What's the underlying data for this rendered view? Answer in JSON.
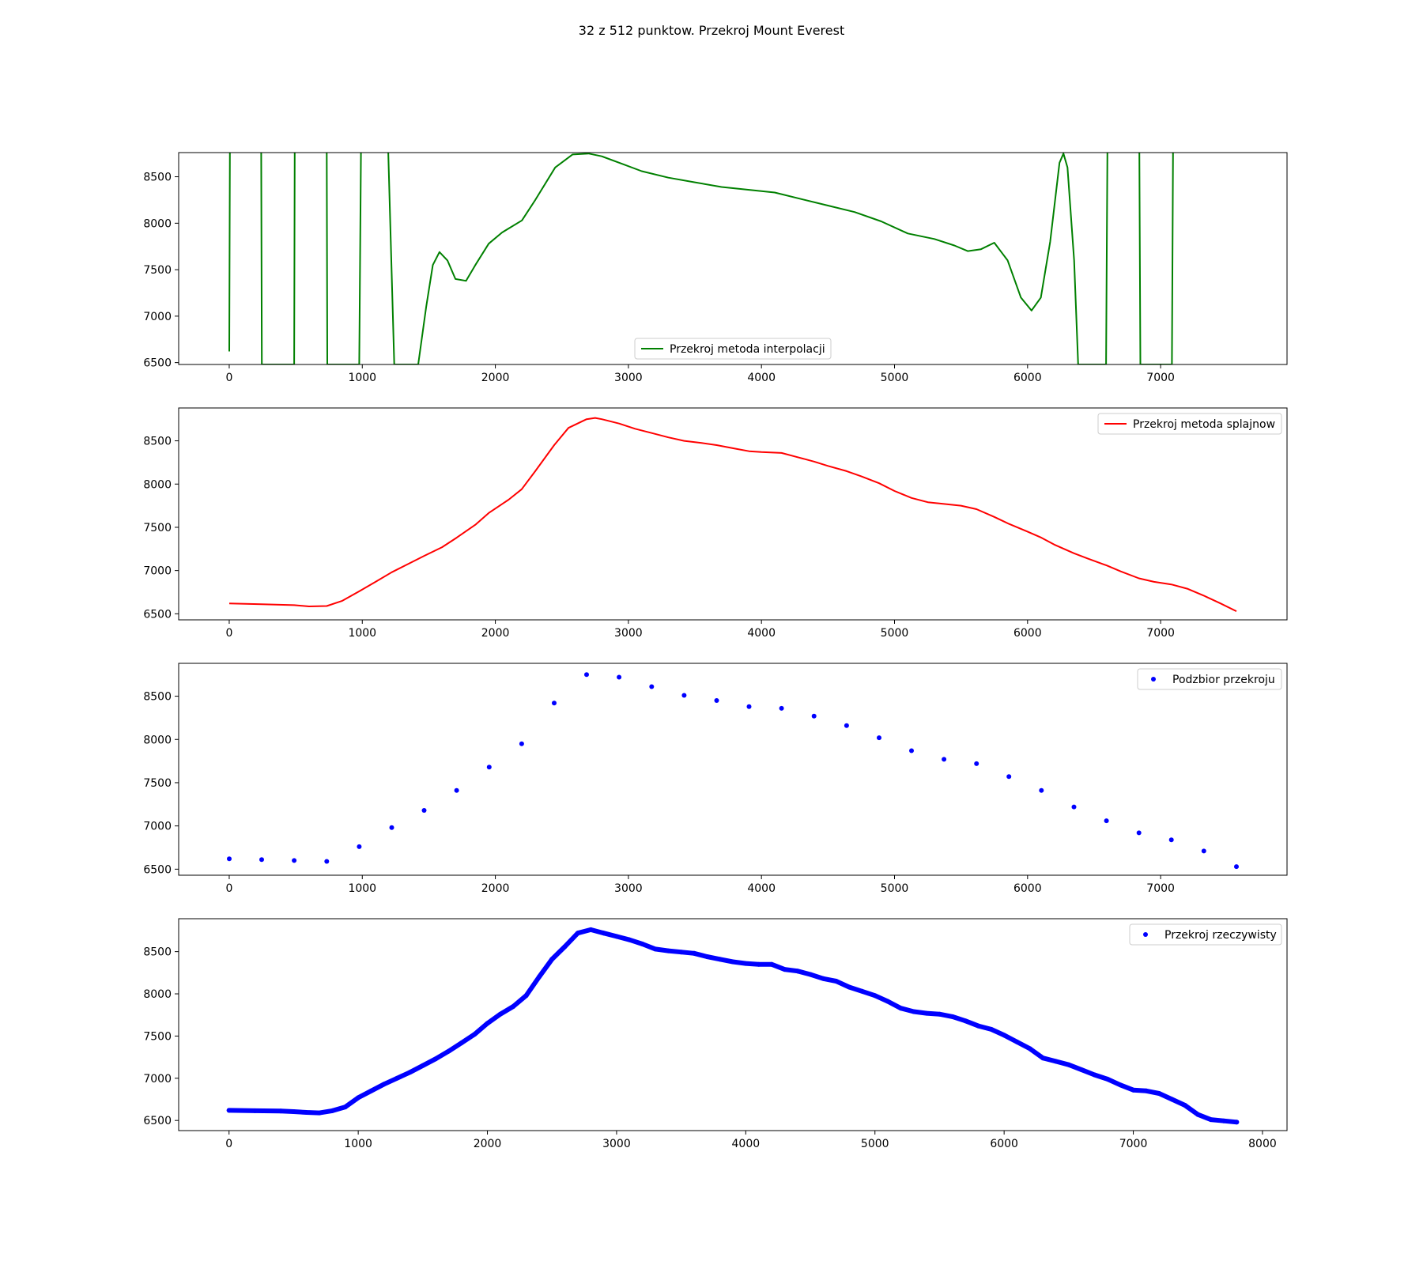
{
  "figure": {
    "suptitle": "32 z 512 punktow. Przekroj Mount Everest"
  },
  "chart_data": [
    {
      "type": "line",
      "legend": "Przekroj metoda interpolacji",
      "legend_loc": "lower center",
      "color": "#008000",
      "xlim": [
        -380,
        7950
      ],
      "ylim": [
        6480,
        8760
      ],
      "xticks": [
        0,
        1000,
        2000,
        3000,
        4000,
        5000,
        6000,
        7000
      ],
      "yticks": [
        6500,
        7000,
        7500,
        8000,
        8500
      ],
      "x": [
        0,
        5,
        25,
        50,
        120,
        240,
        245,
        260,
        350,
        488,
        492,
        510,
        600,
        733,
        737,
        760,
        860,
        977,
        990,
        1050,
        1190,
        1195,
        1240,
        1300,
        1420,
        1480,
        1530,
        1580,
        1640,
        1700,
        1780,
        1850,
        1950,
        2050,
        2200,
        2300,
        2450,
        2580,
        2700,
        2800,
        2950,
        3100,
        3300,
        3500,
        3700,
        3900,
        4100,
        4300,
        4500,
        4700,
        4900,
        5100,
        5300,
        5450,
        5550,
        5650,
        5750,
        5850,
        5950,
        6030,
        6100,
        6170,
        6240,
        6270,
        6300,
        6350,
        6380,
        6590,
        6600,
        6620,
        6700,
        6840,
        6848,
        6860,
        6960,
        7085,
        7093,
        7105,
        7200,
        7330,
        7335
      ],
      "y": [
        6620,
        8770,
        8770,
        8770,
        8770,
        8770,
        6480,
        6480,
        6480,
        6480,
        8770,
        8770,
        8770,
        8770,
        6480,
        6480,
        6480,
        6480,
        8770,
        8770,
        8770,
        8770,
        6480,
        6480,
        6480,
        7100,
        7550,
        7690,
        7600,
        7400,
        7380,
        7550,
        7780,
        7900,
        8030,
        8250,
        8600,
        8740,
        8750,
        8720,
        8640,
        8560,
        8490,
        8440,
        8390,
        8360,
        8330,
        8260,
        8190,
        8120,
        8020,
        7890,
        7830,
        7760,
        7700,
        7720,
        7790,
        7600,
        7200,
        7060,
        7200,
        7800,
        8650,
        8750,
        8600,
        7600,
        6480,
        6480,
        8770,
        8770,
        8770,
        8770,
        6480,
        6480,
        6480,
        6480,
        8770,
        8770,
        8770,
        8770,
        8770
      ]
    },
    {
      "type": "line",
      "legend": "Przekroj metoda splajnow",
      "legend_loc": "upper right",
      "color": "#ff0000",
      "xlim": [
        -380,
        7950
      ],
      "ylim": [
        6430,
        8880
      ],
      "xticks": [
        0,
        1000,
        2000,
        3000,
        4000,
        5000,
        6000,
        7000
      ],
      "yticks": [
        6500,
        7000,
        7500,
        8000,
        8500
      ],
      "x": [
        0,
        244,
        488,
        600,
        733,
        850,
        977,
        1100,
        1221,
        1350,
        1465,
        1600,
        1709,
        1850,
        1954,
        2100,
        2198,
        2300,
        2442,
        2550,
        2686,
        2750,
        2800,
        2930,
        3050,
        3175,
        3300,
        3419,
        3550,
        3663,
        3800,
        3907,
        4000,
        4151,
        4250,
        4395,
        4500,
        4640,
        4750,
        4884,
        5000,
        5128,
        5250,
        5372,
        5500,
        5616,
        5750,
        5860,
        6000,
        6104,
        6200,
        6349,
        6450,
        6593,
        6700,
        6837,
        6950,
        7081,
        7200,
        7325,
        7450,
        7570
      ],
      "y": [
        6620,
        6610,
        6600,
        6585,
        6590,
        6650,
        6760,
        6870,
        6980,
        7080,
        7170,
        7270,
        7380,
        7530,
        7670,
        7820,
        7940,
        8150,
        8450,
        8650,
        8750,
        8765,
        8750,
        8700,
        8640,
        8590,
        8540,
        8500,
        8475,
        8450,
        8410,
        8380,
        8370,
        8360,
        8320,
        8260,
        8210,
        8150,
        8090,
        8010,
        7920,
        7840,
        7790,
        7770,
        7750,
        7710,
        7620,
        7540,
        7450,
        7380,
        7300,
        7200,
        7140,
        7060,
        6990,
        6910,
        6870,
        6840,
        6790,
        6710,
        6620,
        6530
      ]
    },
    {
      "type": "scatter",
      "legend": "Podzbior przekroju",
      "legend_loc": "upper right",
      "color": "#0000ff",
      "xlim": [
        -380,
        7950
      ],
      "ylim": [
        6430,
        8880
      ],
      "xticks": [
        0,
        1000,
        2000,
        3000,
        4000,
        5000,
        6000,
        7000
      ],
      "yticks": [
        6500,
        7000,
        7500,
        8000,
        8500
      ],
      "x": [
        0,
        244,
        488,
        733,
        977,
        1221,
        1465,
        1709,
        1954,
        2198,
        2442,
        2686,
        2930,
        3175,
        3419,
        3663,
        3907,
        4151,
        4395,
        4640,
        4884,
        5128,
        5372,
        5616,
        5860,
        6104,
        6349,
        6593,
        6837,
        7081,
        7325,
        7570
      ],
      "y": [
        6620,
        6610,
        6600,
        6590,
        6760,
        6980,
        7180,
        7410,
        7680,
        7950,
        8420,
        8750,
        8720,
        8610,
        8510,
        8450,
        8380,
        8360,
        8270,
        8160,
        8020,
        7870,
        7770,
        7720,
        7570,
        7410,
        7220,
        7060,
        6920,
        6840,
        6710,
        6530
      ]
    },
    {
      "type": "scatter",
      "legend": "Przekroj rzeczywisty",
      "legend_loc": "upper right",
      "color": "#0000ff",
      "xlim": [
        -390,
        8190
      ],
      "ylim": [
        6380,
        8890
      ],
      "xticks": [
        0,
        1000,
        2000,
        3000,
        4000,
        5000,
        6000,
        7000,
        8000
      ],
      "yticks": [
        6500,
        7000,
        7500,
        8000,
        8500
      ],
      "x": [
        0,
        200,
        400,
        500,
        600,
        700,
        800,
        900,
        1000,
        1100,
        1200,
        1300,
        1400,
        1500,
        1600,
        1700,
        1800,
        1900,
        2000,
        2100,
        2200,
        2300,
        2400,
        2500,
        2600,
        2700,
        2800,
        2900,
        3000,
        3100,
        3200,
        3300,
        3400,
        3500,
        3600,
        3700,
        3800,
        3900,
        4000,
        4100,
        4200,
        4300,
        4400,
        4500,
        4600,
        4700,
        4800,
        4900,
        5000,
        5100,
        5200,
        5300,
        5400,
        5500,
        5600,
        5700,
        5800,
        5900,
        6000,
        6100,
        6200,
        6300,
        6400,
        6500,
        6600,
        6700,
        6800,
        6900,
        7000,
        7100,
        7200,
        7300,
        7400,
        7500,
        7600,
        7700,
        7800
      ],
      "y": [
        6620,
        6615,
        6612,
        6605,
        6595,
        6590,
        6615,
        6660,
        6770,
        6850,
        6930,
        7000,
        7070,
        7150,
        7230,
        7320,
        7420,
        7520,
        7650,
        7760,
        7850,
        7980,
        8200,
        8410,
        8560,
        8720,
        8760,
        8720,
        8680,
        8640,
        8590,
        8530,
        8510,
        8495,
        8480,
        8440,
        8410,
        8380,
        8360,
        8350,
        8350,
        8290,
        8270,
        8230,
        8180,
        8150,
        8080,
        8030,
        7980,
        7910,
        7830,
        7790,
        7770,
        7760,
        7730,
        7680,
        7620,
        7580,
        7510,
        7430,
        7350,
        7240,
        7200,
        7160,
        7100,
        7040,
        6990,
        6920,
        6860,
        6850,
        6820,
        6750,
        6680,
        6570,
        6510,
        6495,
        6480
      ]
    }
  ]
}
